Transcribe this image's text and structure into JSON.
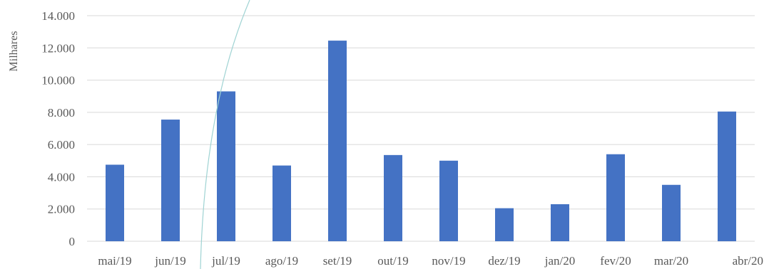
{
  "chart_data": {
    "type": "bar",
    "title": "",
    "xlabel": "",
    "ylabel": "Milhares",
    "categories": [
      "mai/19",
      "jun/19",
      "jul/19",
      "ago/19",
      "set/19",
      "out/19",
      "nov/19",
      "dez/19",
      "jan/20",
      "fev/20",
      "mar/20",
      "abr/20"
    ],
    "values": [
      4750,
      7550,
      9300,
      4700,
      12450,
      5350,
      5000,
      2050,
      2300,
      5400,
      3500,
      8050
    ],
    "ylim": [
      0,
      14000
    ],
    "yticks": [
      0,
      2000,
      4000,
      6000,
      8000,
      10000,
      12000,
      14000
    ],
    "ytick_labels": [
      "0",
      "2.000",
      "4.000",
      "6.000",
      "8.000",
      "10.000",
      "12.000",
      "14.000"
    ],
    "grid": true,
    "legend": "none",
    "colors": {
      "bar": "#4472C4",
      "grid": "#D9D9D9",
      "text": "#595959",
      "overlay_arc": "#9FD3D3"
    }
  }
}
